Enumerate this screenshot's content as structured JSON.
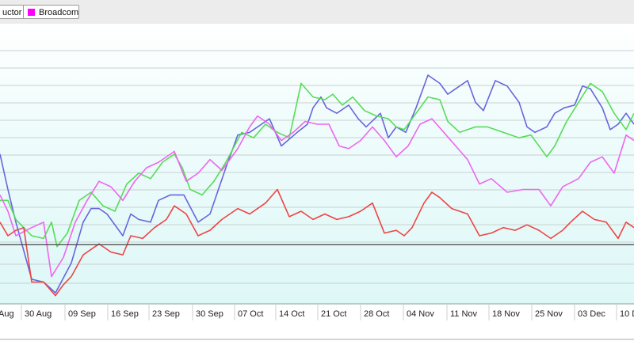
{
  "legend": {
    "items": [
      {
        "label": "uctor",
        "color": "#2255cc"
      },
      {
        "label": "Broadcom",
        "color": "#ff00ff"
      }
    ]
  },
  "chart_data": {
    "type": "line",
    "x_tick_labels": [
      "Aug",
      "30 Aug",
      "09 Sep",
      "16 Sep",
      "23 Sep",
      "30 Sep",
      "07 Oct",
      "14 Oct",
      "21 Oct",
      "28 Oct",
      "04 Nov",
      "11 Nov",
      "18 Nov",
      "25 Nov",
      "03 Dec",
      "10 D"
    ],
    "ylim": [
      0,
      100
    ],
    "baseline": 21.7,
    "grid": true,
    "series": [
      {
        "color": "#6666dd",
        "values": [
          [
            0,
            55
          ],
          [
            10,
            42
          ],
          [
            20,
            30
          ],
          [
            40,
            9
          ],
          [
            55,
            8
          ],
          [
            70,
            4
          ],
          [
            90,
            15
          ],
          [
            105,
            30
          ],
          [
            115,
            35
          ],
          [
            125,
            35
          ],
          [
            135,
            33
          ],
          [
            155,
            25
          ],
          [
            165,
            33
          ],
          [
            175,
            31
          ],
          [
            190,
            30
          ],
          [
            200,
            38
          ],
          [
            215,
            40
          ],
          [
            232,
            40
          ],
          [
            250,
            30
          ],
          [
            265,
            33
          ],
          [
            285,
            50
          ],
          [
            300,
            62
          ],
          [
            315,
            63
          ],
          [
            330,
            66
          ],
          [
            340,
            68
          ],
          [
            355,
            58
          ],
          [
            375,
            63
          ],
          [
            388,
            66
          ],
          [
            395,
            72
          ],
          [
            405,
            76
          ],
          [
            412,
            72
          ],
          [
            425,
            70
          ],
          [
            440,
            73
          ],
          [
            452,
            68
          ],
          [
            462,
            65
          ],
          [
            480,
            70
          ],
          [
            490,
            61
          ],
          [
            500,
            65
          ],
          [
            512,
            63
          ],
          [
            525,
            72
          ],
          [
            540,
            84
          ],
          [
            555,
            81
          ],
          [
            565,
            77
          ],
          [
            575,
            79
          ],
          [
            590,
            82
          ],
          [
            600,
            74
          ],
          [
            610,
            71
          ],
          [
            625,
            82
          ],
          [
            640,
            80
          ],
          [
            655,
            74
          ],
          [
            665,
            65
          ],
          [
            675,
            63
          ],
          [
            690,
            65
          ],
          [
            700,
            70
          ],
          [
            712,
            72
          ],
          [
            725,
            73
          ],
          [
            735,
            80
          ],
          [
            745,
            79
          ],
          [
            760,
            72
          ],
          [
            770,
            64
          ],
          [
            780,
            66
          ],
          [
            790,
            70
          ],
          [
            800,
            66
          ]
        ]
      },
      {
        "color": "#55dd55",
        "values": [
          [
            0,
            38
          ],
          [
            10,
            38
          ],
          [
            20,
            31
          ],
          [
            40,
            25
          ],
          [
            55,
            24
          ],
          [
            65,
            30
          ],
          [
            72,
            21
          ],
          [
            85,
            26
          ],
          [
            100,
            38
          ],
          [
            115,
            41
          ],
          [
            130,
            36
          ],
          [
            145,
            34
          ],
          [
            160,
            44
          ],
          [
            175,
            48
          ],
          [
            190,
            46
          ],
          [
            205,
            52
          ],
          [
            220,
            55
          ],
          [
            230,
            50
          ],
          [
            240,
            42
          ],
          [
            255,
            40
          ],
          [
            270,
            45
          ],
          [
            285,
            52
          ],
          [
            305,
            63
          ],
          [
            320,
            61
          ],
          [
            335,
            66
          ],
          [
            350,
            63
          ],
          [
            365,
            61
          ],
          [
            380,
            81
          ],
          [
            395,
            76
          ],
          [
            410,
            75
          ],
          [
            420,
            77
          ],
          [
            432,
            73
          ],
          [
            445,
            76
          ],
          [
            460,
            71
          ],
          [
            475,
            69
          ],
          [
            490,
            68
          ],
          [
            500,
            65
          ],
          [
            510,
            64
          ],
          [
            525,
            70
          ],
          [
            540,
            76
          ],
          [
            555,
            75
          ],
          [
            565,
            67
          ],
          [
            580,
            63
          ],
          [
            600,
            65
          ],
          [
            615,
            65
          ],
          [
            635,
            63
          ],
          [
            655,
            61
          ],
          [
            670,
            62
          ],
          [
            690,
            54
          ],
          [
            700,
            58
          ],
          [
            715,
            67
          ],
          [
            730,
            74
          ],
          [
            745,
            81
          ],
          [
            760,
            78
          ],
          [
            775,
            70
          ],
          [
            790,
            64
          ],
          [
            800,
            70
          ]
        ]
      },
      {
        "color": "#ee66ee",
        "values": [
          [
            0,
            40
          ],
          [
            10,
            34
          ],
          [
            20,
            25
          ],
          [
            40,
            28
          ],
          [
            55,
            30
          ],
          [
            65,
            10
          ],
          [
            80,
            17
          ],
          [
            95,
            30
          ],
          [
            110,
            38
          ],
          [
            125,
            45
          ],
          [
            140,
            43
          ],
          [
            155,
            38
          ],
          [
            170,
            45
          ],
          [
            185,
            50
          ],
          [
            200,
            52
          ],
          [
            220,
            56
          ],
          [
            235,
            45
          ],
          [
            250,
            48
          ],
          [
            265,
            53
          ],
          [
            280,
            49
          ],
          [
            300,
            57
          ],
          [
            315,
            65
          ],
          [
            325,
            69
          ],
          [
            340,
            66
          ],
          [
            355,
            60
          ],
          [
            370,
            63
          ],
          [
            385,
            67
          ],
          [
            400,
            66
          ],
          [
            415,
            66
          ],
          [
            428,
            58
          ],
          [
            440,
            57
          ],
          [
            455,
            60
          ],
          [
            470,
            65
          ],
          [
            485,
            60
          ],
          [
            500,
            54
          ],
          [
            515,
            58
          ],
          [
            530,
            66
          ],
          [
            545,
            68
          ],
          [
            560,
            63
          ],
          [
            575,
            58
          ],
          [
            590,
            53
          ],
          [
            605,
            44
          ],
          [
            620,
            46
          ],
          [
            640,
            41
          ],
          [
            660,
            42
          ],
          [
            680,
            42
          ],
          [
            695,
            36
          ],
          [
            710,
            43
          ],
          [
            730,
            46
          ],
          [
            745,
            52
          ],
          [
            760,
            54
          ],
          [
            775,
            48
          ],
          [
            790,
            62
          ],
          [
            800,
            60
          ]
        ]
      },
      {
        "color": "#ee4444",
        "values": [
          [
            0,
            30
          ],
          [
            10,
            25
          ],
          [
            20,
            27
          ],
          [
            30,
            28
          ],
          [
            40,
            8
          ],
          [
            55,
            8
          ],
          [
            70,
            3
          ],
          [
            80,
            7
          ],
          [
            90,
            10
          ],
          [
            105,
            18
          ],
          [
            115,
            20
          ],
          [
            125,
            22
          ],
          [
            140,
            19
          ],
          [
            155,
            18
          ],
          [
            165,
            25
          ],
          [
            180,
            24
          ],
          [
            195,
            28
          ],
          [
            210,
            31
          ],
          [
            220,
            36
          ],
          [
            235,
            33
          ],
          [
            250,
            25
          ],
          [
            265,
            27
          ],
          [
            280,
            31
          ],
          [
            300,
            35
          ],
          [
            315,
            33
          ],
          [
            335,
            37
          ],
          [
            350,
            42
          ],
          [
            365,
            32
          ],
          [
            380,
            34
          ],
          [
            395,
            31
          ],
          [
            410,
            33
          ],
          [
            425,
            31
          ],
          [
            440,
            32
          ],
          [
            455,
            34
          ],
          [
            470,
            37
          ],
          [
            485,
            26
          ],
          [
            500,
            27
          ],
          [
            510,
            25
          ],
          [
            520,
            28
          ],
          [
            535,
            37
          ],
          [
            545,
            41
          ],
          [
            555,
            39
          ],
          [
            570,
            35
          ],
          [
            590,
            33
          ],
          [
            605,
            25
          ],
          [
            620,
            26
          ],
          [
            635,
            28
          ],
          [
            650,
            27
          ],
          [
            665,
            29
          ],
          [
            680,
            27
          ],
          [
            695,
            24
          ],
          [
            710,
            27
          ],
          [
            720,
            30
          ],
          [
            735,
            34
          ],
          [
            750,
            31
          ],
          [
            765,
            30
          ],
          [
            780,
            24
          ],
          [
            790,
            30
          ],
          [
            800,
            28
          ]
        ]
      }
    ]
  }
}
